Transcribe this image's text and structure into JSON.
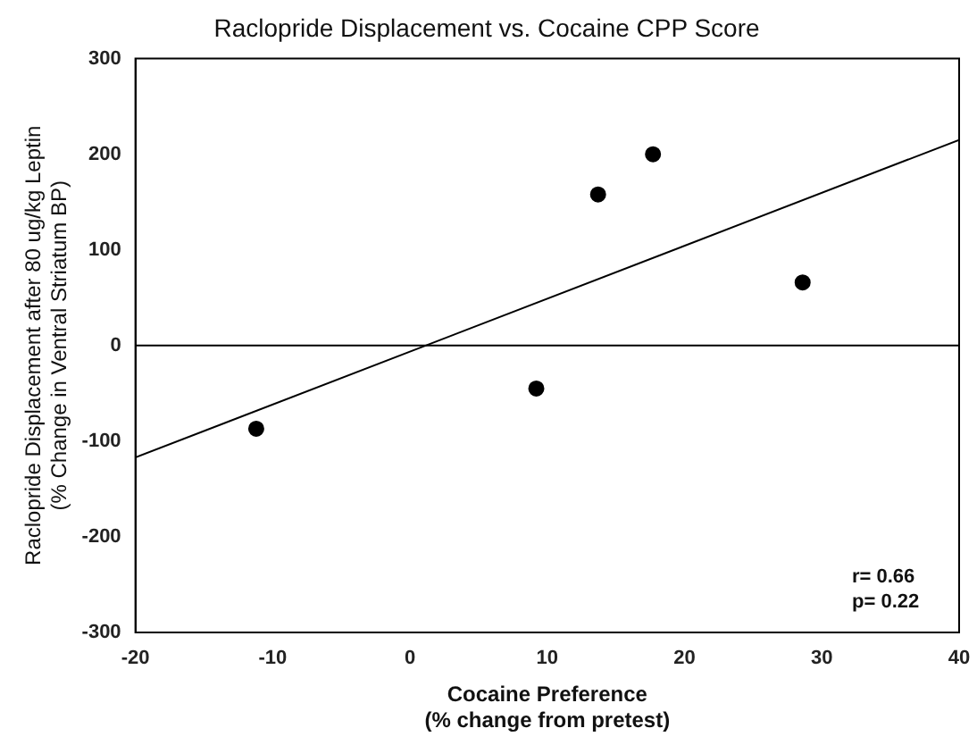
{
  "chart_data": {
    "type": "scatter",
    "title": "Raclopride Displacement vs. Cocaine CPP Score",
    "xlabel": "Cocaine Preference\n(% change from pretest)",
    "ylabel": "Raclopride Displacement after 80 ug/kg Leptin\n(% Change in Ventral Striatum BP)",
    "series": [
      {
        "color": "#000000",
        "marker": "circle",
        "x": [
          -11.2,
          9.2,
          13.7,
          17.7,
          28.6
        ],
        "values": [
          -87,
          -45,
          158,
          200,
          66
        ]
      },
      {
        "type": "line",
        "color": "#000000",
        "x": [
          -20,
          40
        ],
        "values": [
          -117,
          215
        ]
      }
    ],
    "xlim": [
      -20,
      40
    ],
    "xticks": [
      -20,
      -10,
      0,
      10,
      20,
      30,
      40
    ],
    "ylim": [
      -300,
      300
    ],
    "yticks": [
      -300,
      -200,
      -100,
      0,
      100,
      200,
      300
    ],
    "ref_lines": [
      {
        "axis": "y",
        "value": 0
      }
    ],
    "annotations": [
      "r= 0.66",
      "p= 0.22"
    ],
    "grid": false,
    "legend": false
  }
}
